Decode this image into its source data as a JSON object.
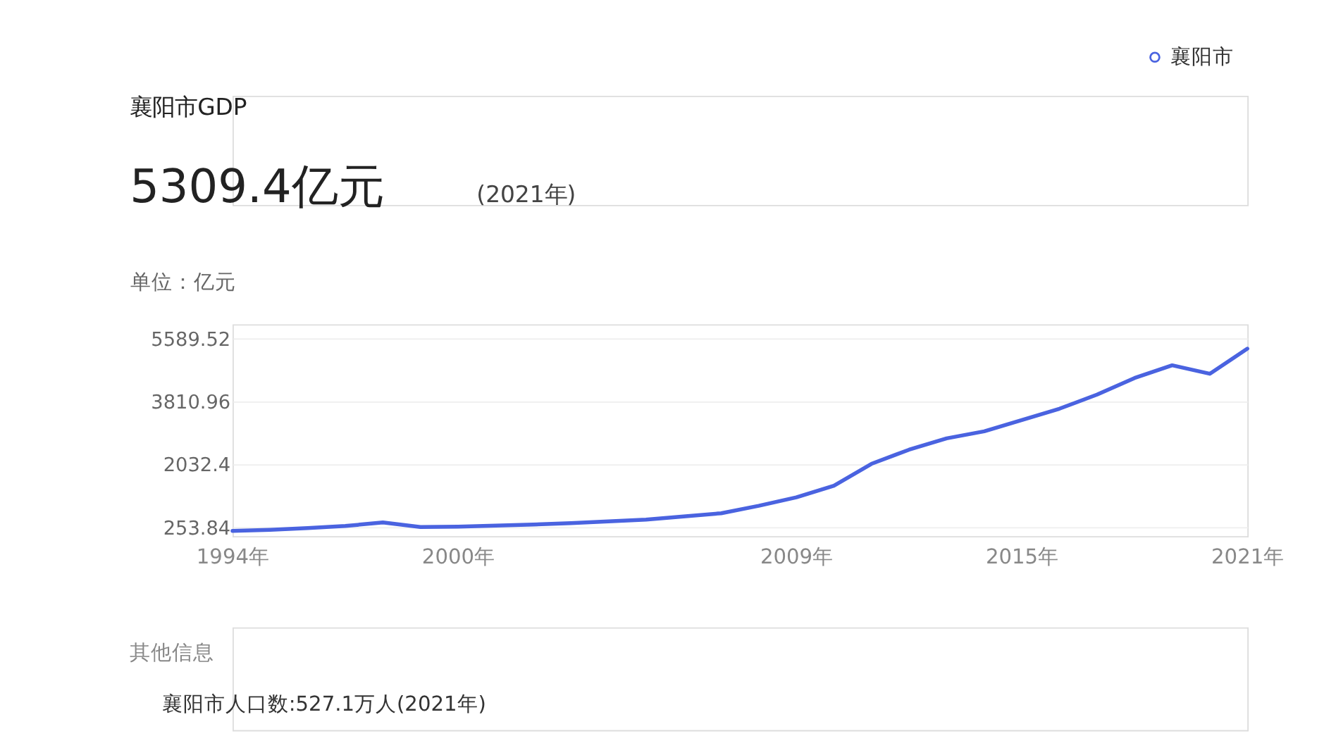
{
  "chart_data": {
    "type": "line",
    "title": "襄阳市GDP",
    "subtitle": "5309.4亿元",
    "ylabel": "单位：亿元",
    "annotations": [
      "(2021年)",
      "其他信息",
      "襄阳市人口数:527.1万人(2021年)"
    ],
    "x": [
      1994,
      1995,
      1996,
      1997,
      1998,
      1999,
      2000,
      2001,
      2002,
      2003,
      2004,
      2005,
      2006,
      2007,
      2008,
      2009,
      2010,
      2011,
      2012,
      2013,
      2014,
      2015,
      2016,
      2017,
      2018,
      2019,
      2020,
      2021
    ],
    "series": [
      {
        "name": "襄阳市",
        "color": "#4a63e0",
        "values": [
          150,
          180,
          230,
          290,
          390,
          260,
          270,
          300,
          330,
          370,
          420,
          470,
          560,
          650,
          860,
          1100,
          1430,
          2050,
          2450,
          2770,
          2970,
          3290,
          3610,
          4010,
          4480,
          4840,
          4600,
          5310
        ]
      }
    ],
    "xlim": [
      1994,
      2021
    ],
    "xticks": [
      {
        "value": 1994,
        "label": "1994年"
      },
      {
        "value": 2000,
        "label": "2000年"
      },
      {
        "value": 2009,
        "label": "2009年"
      },
      {
        "value": 2015,
        "label": "2015年"
      },
      {
        "value": 2021,
        "label": "2021年"
      }
    ],
    "ylim": [
      0,
      6000
    ],
    "yticks": [
      253.84,
      2032.4,
      3810.96,
      5589.52
    ],
    "grid": "y",
    "legend": "top right",
    "marker": "none",
    "line_style": "solid"
  }
}
